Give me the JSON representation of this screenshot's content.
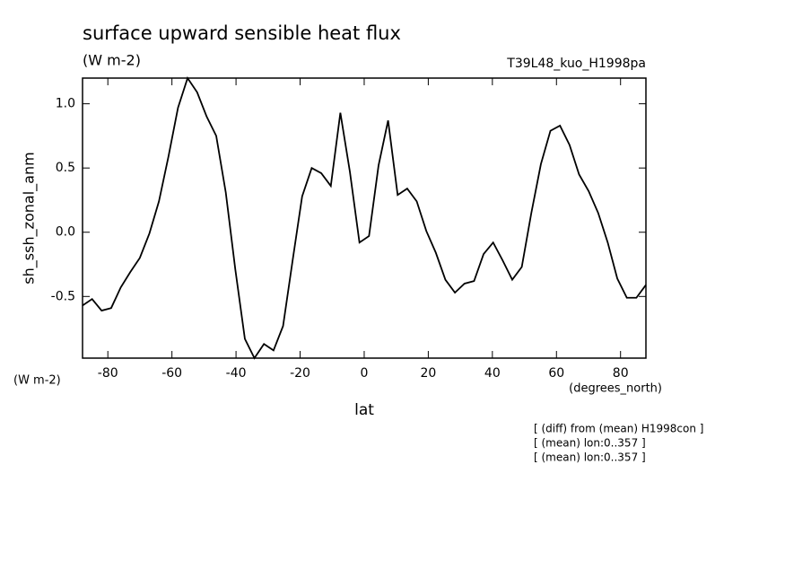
{
  "chart_data": {
    "type": "line",
    "title": "surface upward sensible heat flux",
    "subtitle": "(W m-2)",
    "run_label": "T39L48_kuo_H1998pa",
    "ylabel": "sh_ssh_zonal_anm",
    "yunits": "(W m-2)",
    "xunits": "(degrees_north)",
    "xlabel": "lat",
    "notes": [
      "[ (diff) from (mean) H1998con ]",
      "[ (mean) lon:0..357 ]",
      "[ (mean) lon:0..357 ]"
    ],
    "color": "#000000",
    "x": [
      -87.9,
      -84.92,
      -81.94,
      -78.96,
      -75.98,
      -73.0,
      -70.02,
      -67.04,
      -64.06,
      -61.08,
      -58.1,
      -55.12,
      -52.14,
      -49.16,
      -46.18,
      -43.2,
      -40.22,
      -37.24,
      -34.26,
      -31.28,
      -28.3,
      -25.32,
      -22.34,
      -19.36,
      -16.38,
      -13.4,
      -10.42,
      -7.44,
      -4.46,
      -1.48,
      1.5,
      4.48,
      7.46,
      10.44,
      13.42,
      16.4,
      19.38,
      22.36,
      25.34,
      28.32,
      31.3,
      34.28,
      37.26,
      40.24,
      43.22,
      46.2,
      49.18,
      52.16,
      55.14,
      58.12,
      61.1,
      64.08,
      67.06,
      70.04,
      73.02,
      76.0,
      78.98,
      81.96,
      84.94,
      87.92
    ],
    "values": [
      -0.57,
      -0.52,
      -0.61,
      -0.59,
      -0.43,
      -0.31,
      -0.2,
      -0.01,
      0.24,
      0.59,
      0.97,
      1.2,
      1.09,
      0.9,
      0.75,
      0.31,
      -0.29,
      -0.83,
      -0.98,
      -0.87,
      -0.92,
      -0.73,
      -0.22,
      0.28,
      0.5,
      0.46,
      0.36,
      0.93,
      0.47,
      -0.08,
      -0.03,
      0.52,
      0.87,
      0.29,
      0.34,
      0.24,
      0.01,
      -0.16,
      -0.37,
      -0.47,
      -0.4,
      -0.38,
      -0.17,
      -0.08,
      -0.22,
      -0.37,
      -0.27,
      0.15,
      0.53,
      0.79,
      0.83,
      0.68,
      0.45,
      0.32,
      0.15,
      -0.08,
      -0.36,
      -0.51,
      -0.51,
      -0.41
    ],
    "xlim": [
      -87.9,
      87.92
    ],
    "ylim": [
      -0.98,
      1.2
    ],
    "xticks": [
      -80,
      -60,
      -40,
      -20,
      0,
      20,
      40,
      60,
      80
    ],
    "yticks": [
      -0.5,
      {
        "value": 0,
        "label": "0.0"
      },
      {
        "value": 0.5,
        "label": "0.5"
      },
      {
        "value": 1,
        "label": "1.0"
      }
    ]
  }
}
